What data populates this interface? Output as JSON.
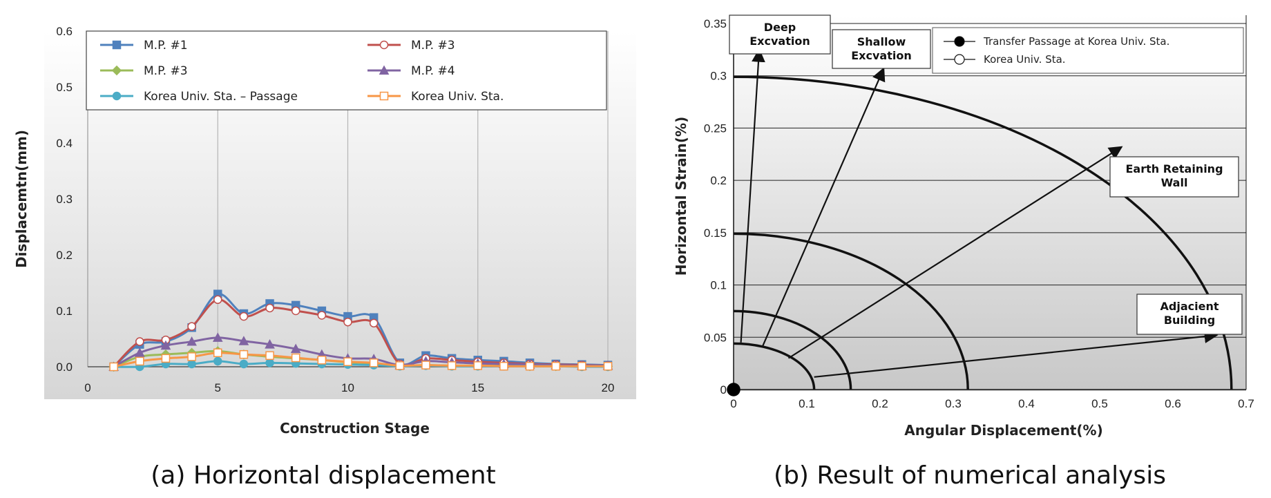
{
  "captions": {
    "left": "(a) Horizontal displacement",
    "right": "(b) Result of numerical analysis"
  },
  "chart_data": [
    {
      "type": "line",
      "xlabel": "Construction Stage",
      "ylabel": "Displacemtn(mm)",
      "xlim": [
        0,
        20
      ],
      "ylim": [
        0,
        0.6
      ],
      "xticks": [
        "0",
        "5",
        "10",
        "15",
        "20"
      ],
      "yticks": [
        "0.0",
        "0.1",
        "0.2",
        "0.3",
        "0.4",
        "0.5",
        "0.6"
      ],
      "grid": "vertical",
      "legend_position": "top",
      "x": [
        1,
        2,
        3,
        4,
        5,
        6,
        7,
        8,
        9,
        10,
        11,
        12,
        13,
        14,
        15,
        16,
        17,
        18,
        19,
        20
      ],
      "series": [
        {
          "name": "M.P. #1",
          "color": "#4F81BD",
          "marker": "square-filled",
          "values": [
            0.0,
            0.04,
            0.045,
            0.07,
            0.13,
            0.095,
            0.113,
            0.11,
            0.1,
            0.09,
            0.088,
            0.007,
            0.02,
            0.015,
            0.012,
            0.01,
            0.007,
            0.005,
            0.004,
            0.003
          ]
        },
        {
          "name": "M.P. #3",
          "color": "#C0504D",
          "marker": "circle-open",
          "values": [
            0.0,
            0.045,
            0.048,
            0.072,
            0.12,
            0.09,
            0.105,
            0.1,
            0.092,
            0.08,
            0.078,
            0.005,
            0.015,
            0.012,
            0.009,
            0.007,
            0.005,
            0.004,
            0.003,
            0.002
          ]
        },
        {
          "name": "M.P. #3",
          "color": "#9BBB59",
          "marker": "diamond-filled",
          "values": [
            0.0,
            0.018,
            0.022,
            0.025,
            0.028,
            0.022,
            0.018,
            0.015,
            0.012,
            0.008,
            0.006,
            0.002,
            0.003,
            0.002,
            0.002,
            0.002,
            0.001,
            0.001,
            0.001,
            0.001
          ]
        },
        {
          "name": "M.P. #4",
          "color": "#8064A2",
          "marker": "triangle-filled",
          "values": [
            0.0,
            0.025,
            0.038,
            0.045,
            0.052,
            0.046,
            0.04,
            0.032,
            0.022,
            0.015,
            0.014,
            0.003,
            0.01,
            0.008,
            0.006,
            0.005,
            0.004,
            0.003,
            0.002,
            0.002
          ]
        },
        {
          "name": "Korea Univ. Sta. – Passage",
          "color": "#4BACC6",
          "marker": "circle-filled",
          "values": [
            0.0,
            0.0,
            0.005,
            0.005,
            0.01,
            0.005,
            0.007,
            0.006,
            0.005,
            0.004,
            0.003,
            0.001,
            0.002,
            0.001,
            0.001,
            0.001,
            0.001,
            0.001,
            0.0,
            0.0
          ]
        },
        {
          "name": "Korea Univ. Sta.",
          "color": "#F79646",
          "marker": "square-open",
          "values": [
            0.0,
            0.01,
            0.015,
            0.018,
            0.025,
            0.022,
            0.02,
            0.016,
            0.012,
            0.009,
            0.007,
            0.002,
            0.003,
            0.002,
            0.002,
            0.001,
            0.001,
            0.001,
            0.001,
            0.001
          ]
        }
      ]
    },
    {
      "type": "scatter",
      "xlabel": "Angular Displacement(%)",
      "ylabel": "Horizontal Strain(%)",
      "xlim": [
        0,
        0.7
      ],
      "ylim": [
        0,
        0.35
      ],
      "xticks": [
        "0",
        "0.1",
        "0.2",
        "0.3",
        "0.4",
        "0.5",
        "0.6",
        "0.7"
      ],
      "yticks": [
        "0",
        "0.05",
        "0.1",
        "0.15",
        "0.2",
        "0.25",
        "0.3",
        "0.35"
      ],
      "grid": "horizontal",
      "legend_position": "top-right",
      "legend": [
        {
          "name": "Transfer Passage at Korea Univ. Sta.",
          "marker": "circle-filled"
        },
        {
          "name": "Korea Univ. Sta.",
          "marker": "circle-open"
        }
      ],
      "points": [
        {
          "series": "Transfer Passage at Korea Univ. Sta.",
          "x": 0.0,
          "y": 0.0
        }
      ],
      "zone_boundaries": [
        {
          "x_intercept": 0.11,
          "y_intercept": 0.044
        },
        {
          "x_intercept": 0.16,
          "y_intercept": 0.075
        },
        {
          "x_intercept": 0.32,
          "y_intercept": 0.149
        },
        {
          "x_intercept": 0.68,
          "y_intercept": 0.299
        }
      ],
      "annotations": [
        {
          "label": "Deep\nExcvation",
          "arrow_from": [
            0.01,
            0.045
          ],
          "arrow_to": [
            0.035,
            0.325
          ]
        },
        {
          "label": "Shallow\nExcvation",
          "arrow_from": [
            0.04,
            0.042
          ],
          "arrow_to": [
            0.205,
            0.307
          ]
        },
        {
          "label": "Earth Retaining\nWall",
          "arrow_from": [
            0.075,
            0.03
          ],
          "arrow_to": [
            0.53,
            0.232
          ]
        },
        {
          "label": "Adjacient\nBuilding",
          "arrow_from": [
            0.11,
            0.012
          ],
          "arrow_to": [
            0.66,
            0.052
          ]
        }
      ]
    }
  ]
}
